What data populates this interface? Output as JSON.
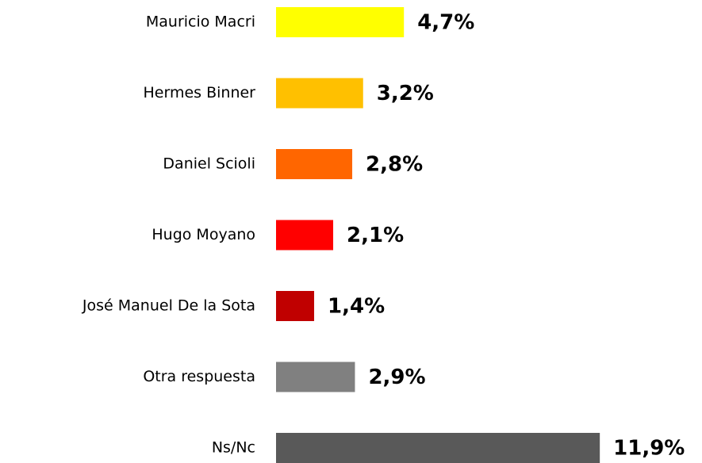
{
  "chart_data": {
    "type": "hbar",
    "categories": [
      "Mauricio Macri",
      "Hermes Binner",
      "Daniel Scioli",
      "Hugo Moyano",
      "José Manuel De la Sota",
      "Otra respuesta",
      "Ns/Nc"
    ],
    "values": [
      4.7,
      3.2,
      2.8,
      2.1,
      1.4,
      2.9,
      11.9
    ],
    "value_labels": [
      "4,7%",
      "3,2%",
      "2,8%",
      "2,1%",
      "1,4%",
      "2,9%",
      "11,9%"
    ],
    "colors": [
      "#ffff00",
      "#ffc000",
      "#ff6600",
      "#ff0000",
      "#c00000",
      "#808080",
      "#595959"
    ]
  }
}
